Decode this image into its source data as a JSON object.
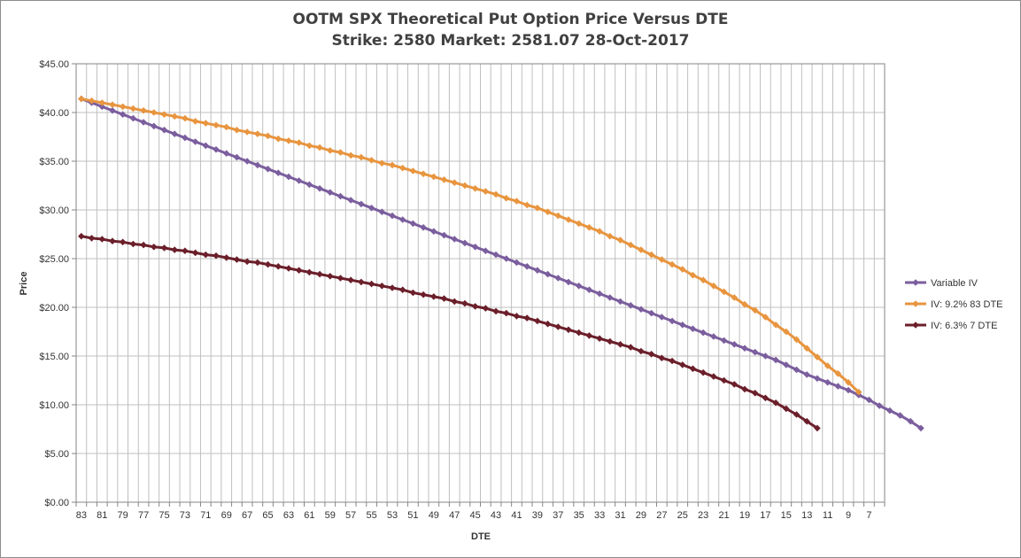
{
  "chart_data": {
    "type": "line",
    "title": "OOTM SPX Theoretical Put Option Price Versus DTE",
    "subtitle": "Strike: 2580   Market: 2581.07  28-Oct-2017",
    "xlabel": "DTE",
    "ylabel": "Price",
    "ylim": [
      0,
      45
    ],
    "y_ticks": [
      "$0.00",
      "$5.00",
      "$10.00",
      "$15.00",
      "$20.00",
      "$25.00",
      "$30.00",
      "$35.00",
      "$40.00",
      "$45.00"
    ],
    "x_start": 83,
    "x_end": 6,
    "x_tick_labels": [
      "83",
      "81",
      "79",
      "77",
      "75",
      "73",
      "71",
      "69",
      "67",
      "65",
      "63",
      "61",
      "59",
      "57",
      "55",
      "53",
      "51",
      "49",
      "47",
      "45",
      "43",
      "41",
      "39",
      "37",
      "35",
      "33",
      "31",
      "29",
      "27",
      "25",
      "23",
      "21",
      "19",
      "17",
      "15",
      "13",
      "11",
      "9",
      "7"
    ],
    "legend_position": "right",
    "grid": true,
    "series": [
      {
        "name": "Variable IV",
        "color": "#7B5E9E",
        "values": [
          41.4,
          41.0,
          40.6,
          40.2,
          39.8,
          39.4,
          39.0,
          38.6,
          38.2,
          37.8,
          37.4,
          37.0,
          36.6,
          36.2,
          35.8,
          35.4,
          35.0,
          34.6,
          34.2,
          33.8,
          33.4,
          33.0,
          32.6,
          32.2,
          31.8,
          31.4,
          31.0,
          30.6,
          30.2,
          29.8,
          29.4,
          29.0,
          28.6,
          28.2,
          27.8,
          27.4,
          27.0,
          26.6,
          26.2,
          25.8,
          25.4,
          25.0,
          24.6,
          24.2,
          23.8,
          23.4,
          23.0,
          22.6,
          22.2,
          21.8,
          21.4,
          21.0,
          20.6,
          20.2,
          19.8,
          19.4,
          19.0,
          18.6,
          18.2,
          17.8,
          17.4,
          17.0,
          16.6,
          16.2,
          15.8,
          15.4,
          15.0,
          14.6,
          14.1,
          13.6,
          13.1,
          12.7,
          12.3,
          11.9,
          11.5,
          11.0,
          10.5,
          9.9,
          9.4,
          8.9,
          8.3,
          7.6
        ]
      },
      {
        "name": "IV: 9.2%  83 DTE",
        "color": "#E8953F",
        "values": [
          41.4,
          41.2,
          41.0,
          40.8,
          40.6,
          40.4,
          40.2,
          40.0,
          39.8,
          39.6,
          39.4,
          39.1,
          38.9,
          38.7,
          38.5,
          38.2,
          38.0,
          37.8,
          37.6,
          37.3,
          37.1,
          36.9,
          36.6,
          36.4,
          36.1,
          35.9,
          35.6,
          35.4,
          35.1,
          34.8,
          34.6,
          34.3,
          34.0,
          33.7,
          33.4,
          33.1,
          32.8,
          32.5,
          32.2,
          31.9,
          31.6,
          31.2,
          30.9,
          30.5,
          30.2,
          29.8,
          29.4,
          29.0,
          28.6,
          28.2,
          27.8,
          27.3,
          26.9,
          26.4,
          25.9,
          25.4,
          24.9,
          24.4,
          23.9,
          23.3,
          22.8,
          22.2,
          21.6,
          21.0,
          20.3,
          19.7,
          19.0,
          18.2,
          17.5,
          16.7,
          15.8,
          14.9,
          14.0,
          13.2,
          12.3,
          11.3
        ]
      },
      {
        "name": "IV: 6.3%  7 DTE",
        "color": "#6B1F2A",
        "values": [
          27.3,
          27.1,
          27.0,
          26.8,
          26.7,
          26.5,
          26.4,
          26.2,
          26.1,
          25.9,
          25.8,
          25.6,
          25.4,
          25.3,
          25.1,
          24.9,
          24.7,
          24.6,
          24.4,
          24.2,
          24.0,
          23.8,
          23.6,
          23.4,
          23.2,
          23.0,
          22.8,
          22.6,
          22.4,
          22.2,
          22.0,
          21.8,
          21.5,
          21.3,
          21.1,
          20.9,
          20.6,
          20.4,
          20.1,
          19.9,
          19.6,
          19.4,
          19.1,
          18.9,
          18.6,
          18.3,
          18.0,
          17.7,
          17.4,
          17.1,
          16.8,
          16.5,
          16.2,
          15.9,
          15.5,
          15.2,
          14.8,
          14.5,
          14.1,
          13.7,
          13.3,
          12.9,
          12.5,
          12.1,
          11.6,
          11.2,
          10.7,
          10.2,
          9.6,
          9.0,
          8.3,
          7.6
        ]
      }
    ]
  }
}
